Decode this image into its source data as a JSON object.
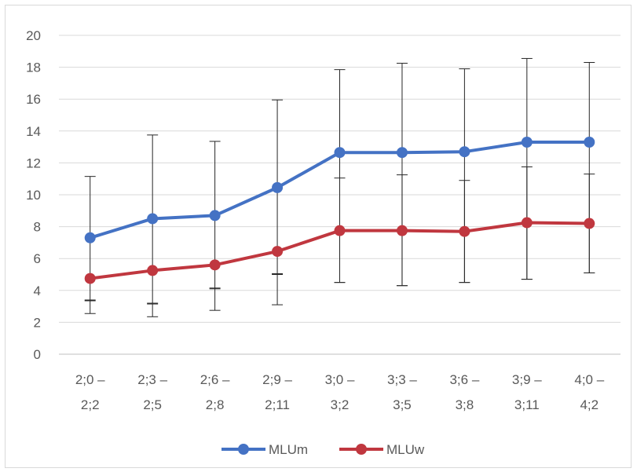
{
  "chart_data": {
    "type": "line",
    "title": "",
    "xlabel": "",
    "ylabel": "",
    "ylim": [
      0,
      20
    ],
    "ytick_step": 2,
    "yticks": [
      "0",
      "2",
      "4",
      "6",
      "8",
      "10",
      "12",
      "14",
      "16",
      "18",
      "20"
    ],
    "grid": true,
    "legend_position": "bottom",
    "categories": [
      [
        "2;0 –",
        "2;2"
      ],
      [
        "2;3 –",
        "2;5"
      ],
      [
        "2;6 –",
        "2;8"
      ],
      [
        "2;9 –",
        "2;11"
      ],
      [
        "3;0 –",
        "3;2"
      ],
      [
        "3;3 –",
        "3;5"
      ],
      [
        "3;6 –",
        "3;8"
      ],
      [
        "3;9 –",
        "3;11"
      ],
      [
        "4;0 –",
        "4;2"
      ]
    ],
    "series": [
      {
        "name": "MLUm",
        "color": "#4472c4",
        "values": [
          7.3,
          8.5,
          8.7,
          10.45,
          12.65,
          12.65,
          12.7,
          13.3,
          13.3
        ],
        "error_low": [
          3.4,
          3.2,
          4.1,
          5.0,
          4.5,
          4.3,
          4.5,
          4.7,
          5.1
        ],
        "error_high": [
          11.15,
          13.75,
          13.35,
          15.95,
          17.85,
          18.25,
          17.9,
          18.55,
          18.3
        ]
      },
      {
        "name": "MLUw",
        "color": "#c0373f",
        "values": [
          4.75,
          5.25,
          5.6,
          6.45,
          7.75,
          7.75,
          7.7,
          8.25,
          8.2
        ],
        "error_low": [
          2.55,
          2.35,
          2.75,
          3.1,
          4.5,
          4.3,
          4.5,
          4.7,
          5.1
        ],
        "error_high": [
          3.35,
          3.15,
          4.15,
          5.05,
          11.05,
          11.25,
          10.9,
          11.75,
          11.3
        ]
      }
    ]
  }
}
